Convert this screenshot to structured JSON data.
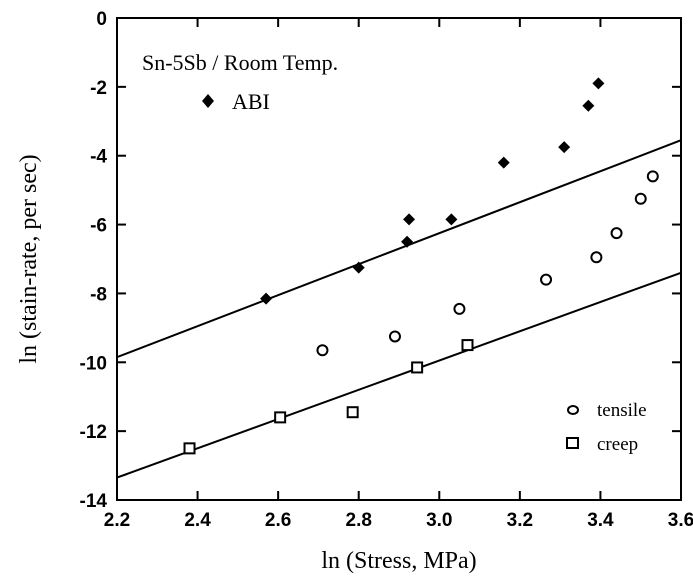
{
  "chart_data": {
    "type": "scatter",
    "title": "",
    "annotation": "Sn-5Sb / Room Temp.",
    "xlabel": "ln (Stress, MPa)",
    "ylabel": "ln (stain-rate, per sec)",
    "xlim": [
      2.2,
      3.6
    ],
    "ylim": [
      -14,
      0
    ],
    "xticks": [
      2.2,
      2.4,
      2.6,
      2.8,
      3.0,
      3.2,
      3.4,
      3.6
    ],
    "yticks": [
      0,
      -2,
      -4,
      -6,
      -8,
      -10,
      -12,
      -14
    ],
    "xtick_labels": [
      "2.2",
      "2.4",
      "2.6",
      "2.8",
      "3.0",
      "3.2",
      "3.4",
      "3.6"
    ],
    "ytick_labels": [
      "0",
      "-2",
      "-4",
      "-6",
      "-8",
      "-10",
      "-12",
      "-14"
    ],
    "grid": false,
    "series": [
      {
        "name": "ABI",
        "marker": "filled-diamond",
        "legend_position": "top-left",
        "x": [
          2.57,
          2.8,
          2.92,
          2.925,
          3.03,
          3.16,
          3.31,
          3.37,
          3.395
        ],
        "y": [
          -8.15,
          -7.25,
          -6.5,
          -5.85,
          -5.85,
          -4.2,
          -3.75,
          -2.55,
          -1.9
        ]
      },
      {
        "name": "tensile",
        "marker": "open-circle",
        "legend_position": "bottom-right",
        "x": [
          2.71,
          2.89,
          3.05,
          3.265,
          3.39,
          3.44,
          3.5,
          3.53
        ],
        "y": [
          -9.65,
          -9.25,
          -8.45,
          -7.6,
          -6.95,
          -6.25,
          -5.25,
          -4.6
        ]
      },
      {
        "name": "creep",
        "marker": "open-square",
        "legend_position": "bottom-right",
        "x": [
          2.38,
          2.605,
          2.785,
          2.945,
          3.07
        ],
        "y": [
          -12.5,
          -11.6,
          -11.45,
          -10.15,
          -9.5
        ]
      }
    ],
    "lines": [
      {
        "x": [
          2.2,
          3.6
        ],
        "y": [
          -9.85,
          -3.55
        ]
      },
      {
        "x": [
          2.2,
          3.6
        ],
        "y": [
          -13.35,
          -7.4
        ]
      }
    ]
  }
}
